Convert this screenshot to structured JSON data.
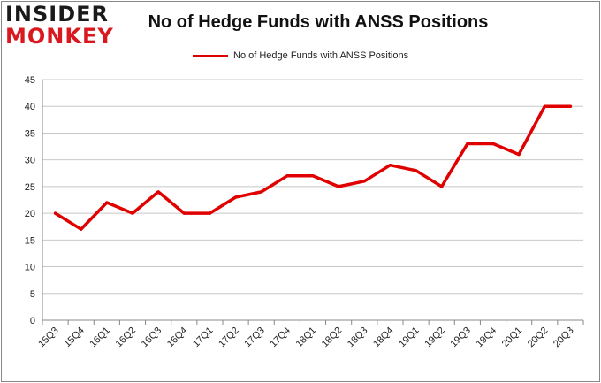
{
  "logo": {
    "line1": "INSIDER",
    "line2": "MONKEY"
  },
  "colors": {
    "series": "#e00000",
    "grid": "#c8c8c8",
    "frame": "#888888",
    "logo_red": "#d9191f"
  },
  "chart_data": {
    "type": "line",
    "title": "No of Hedge Funds with ANSS Positions",
    "xlabel": "",
    "ylabel": "",
    "categories": [
      "15Q3",
      "15Q4",
      "16Q1",
      "16Q2",
      "16Q3",
      "16Q4",
      "17Q1",
      "17Q2",
      "17Q3",
      "17Q4",
      "18Q1",
      "18Q2",
      "18Q3",
      "18Q4",
      "19Q1",
      "19Q2",
      "19Q3",
      "19Q4",
      "20Q1",
      "20Q2",
      "20Q3"
    ],
    "series": [
      {
        "name": "No of Hedge Funds with ANSS Positions",
        "values": [
          20,
          17,
          22,
          20,
          24,
          20,
          20,
          23,
          24,
          27,
          27,
          25,
          26,
          29,
          28,
          25,
          33,
          33,
          31,
          40,
          40
        ]
      }
    ],
    "ylim": [
      0,
      45
    ],
    "yticks": [
      0,
      5,
      10,
      15,
      20,
      25,
      30,
      35,
      40,
      45
    ],
    "grid": true,
    "legend": "top-center"
  }
}
